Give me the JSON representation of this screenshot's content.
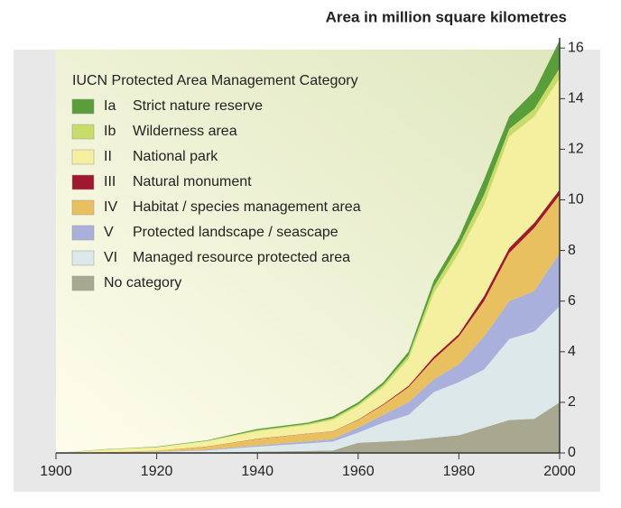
{
  "chart_data": {
    "type": "stacked-area",
    "title": "Area in million square kilometres",
    "legend_title": "IUCN Protected Area Management Category",
    "legend": "upper left",
    "x": [
      1900,
      1910,
      1920,
      1930,
      1940,
      1950,
      1955,
      1960,
      1965,
      1970,
      1975,
      1980,
      1985,
      1990,
      1995,
      2000
    ],
    "xlim": [
      1900,
      2000
    ],
    "xticks": [
      1900,
      1920,
      1940,
      1960,
      1980,
      2000
    ],
    "ylim": [
      0,
      16.4
    ],
    "yticks": [
      0,
      2,
      4,
      6,
      8,
      10,
      12,
      14,
      16
    ],
    "grid": false,
    "series": [
      {
        "code": "Ia",
        "name": "Strict nature reserve",
        "color": "#5a9e3c",
        "values": [
          0,
          0.01,
          0.02,
          0.02,
          0.05,
          0.05,
          0.08,
          0.08,
          0.1,
          0.15,
          0.25,
          0.3,
          0.6,
          0.5,
          0.7,
          1.1
        ]
      },
      {
        "code": "Ib",
        "name": "Wilderness area",
        "color": "#c8dc6a",
        "values": [
          0,
          0.01,
          0.01,
          0.02,
          0.04,
          0.05,
          0.07,
          0.07,
          0.1,
          0.15,
          0.25,
          0.3,
          0.4,
          0.3,
          0.3,
          0.4
        ]
      },
      {
        "code": "II",
        "name": "National park",
        "color": "#f5f0a0",
        "values": [
          0,
          0.1,
          0.12,
          0.2,
          0.3,
          0.33,
          0.44,
          0.53,
          0.67,
          1.05,
          2.5,
          3.2,
          3.6,
          4.4,
          4.2,
          4.4
        ]
      },
      {
        "code": "III",
        "name": "Natural monument",
        "color": "#a0182e",
        "values": [
          0,
          0,
          0,
          0.01,
          0.01,
          0.01,
          0.01,
          0.02,
          0.03,
          0.05,
          0.1,
          0.1,
          0.2,
          0.2,
          0.2,
          0.2
        ]
      },
      {
        "code": "IV",
        "name": "Habitat / species management area",
        "color": "#e8c060",
        "values": [
          0,
          0.02,
          0.05,
          0.12,
          0.25,
          0.3,
          0.3,
          0.3,
          0.4,
          0.6,
          0.8,
          1.1,
          1.4,
          1.9,
          2.5,
          2.3
        ]
      },
      {
        "code": "V",
        "name": "Protected landscape / seascape",
        "color": "#aab0dc",
        "values": [
          0,
          0,
          0.01,
          0.03,
          0.05,
          0.08,
          0.1,
          0.2,
          0.3,
          0.5,
          0.5,
          0.7,
          1.3,
          1.5,
          1.6,
          2.1
        ]
      },
      {
        "code": "VI",
        "name": "Managed resource protected area",
        "color": "#dde8ea",
        "values": [
          0,
          0.01,
          0.03,
          0.08,
          0.2,
          0.3,
          0.35,
          0.4,
          0.75,
          1.0,
          1.8,
          2.1,
          2.3,
          3.2,
          3.45,
          3.8
        ]
      },
      {
        "name": "No category",
        "color": "#a8a890",
        "values": [
          0,
          0,
          0.01,
          0.02,
          0.05,
          0.08,
          0.1,
          0.4,
          0.45,
          0.5,
          0.6,
          0.7,
          1.0,
          1.3,
          1.35,
          2.0
        ]
      }
    ]
  }
}
